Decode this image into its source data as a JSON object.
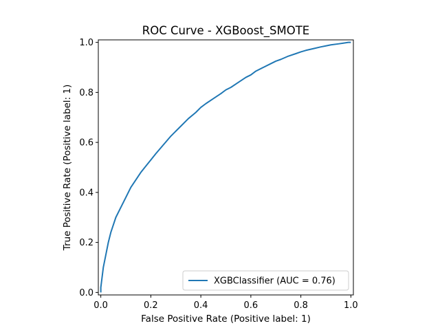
{
  "chart_data": {
    "type": "line",
    "title": "ROC Curve - XGBoost_SMOTE",
    "xlabel": "False Positive Rate (Positive label: 1)",
    "ylabel": "True Positive Rate (Positive label: 1)",
    "xlim": [
      -0.01,
      1.01
    ],
    "ylim": [
      -0.01,
      1.01
    ],
    "xticks": [
      0.0,
      0.2,
      0.4,
      0.6,
      0.8,
      1.0
    ],
    "xtick_labels": [
      "0.0",
      "0.2",
      "0.4",
      "0.6",
      "0.8",
      "1.0"
    ],
    "yticks": [
      0.0,
      0.2,
      0.4,
      0.6,
      0.8,
      1.0
    ],
    "ytick_labels": [
      "0.0",
      "0.2",
      "0.4",
      "0.6",
      "0.8",
      "1.0"
    ],
    "grid": false,
    "legend_position": "lower-right",
    "series": [
      {
        "name": "XGBClassifier (AUC = 0.76)",
        "color": "#1f77b4",
        "x": [
          0.0,
          0.0,
          0.005,
          0.01,
          0.02,
          0.03,
          0.04,
          0.05,
          0.06,
          0.08,
          0.1,
          0.12,
          0.14,
          0.16,
          0.18,
          0.2,
          0.22,
          0.25,
          0.28,
          0.3,
          0.32,
          0.35,
          0.38,
          0.4,
          0.42,
          0.45,
          0.48,
          0.5,
          0.52,
          0.55,
          0.58,
          0.6,
          0.62,
          0.65,
          0.68,
          0.7,
          0.72,
          0.75,
          0.78,
          0.8,
          0.82,
          0.85,
          0.88,
          0.9,
          0.92,
          0.95,
          0.97,
          0.99,
          1.0
        ],
        "y": [
          0.0,
          0.02,
          0.06,
          0.1,
          0.15,
          0.2,
          0.24,
          0.27,
          0.3,
          0.34,
          0.38,
          0.42,
          0.45,
          0.48,
          0.505,
          0.53,
          0.555,
          0.59,
          0.625,
          0.645,
          0.665,
          0.695,
          0.72,
          0.74,
          0.755,
          0.775,
          0.795,
          0.81,
          0.82,
          0.84,
          0.86,
          0.87,
          0.885,
          0.9,
          0.915,
          0.925,
          0.932,
          0.945,
          0.955,
          0.962,
          0.968,
          0.975,
          0.982,
          0.986,
          0.99,
          0.994,
          0.997,
          1.0,
          1.0
        ]
      }
    ]
  }
}
